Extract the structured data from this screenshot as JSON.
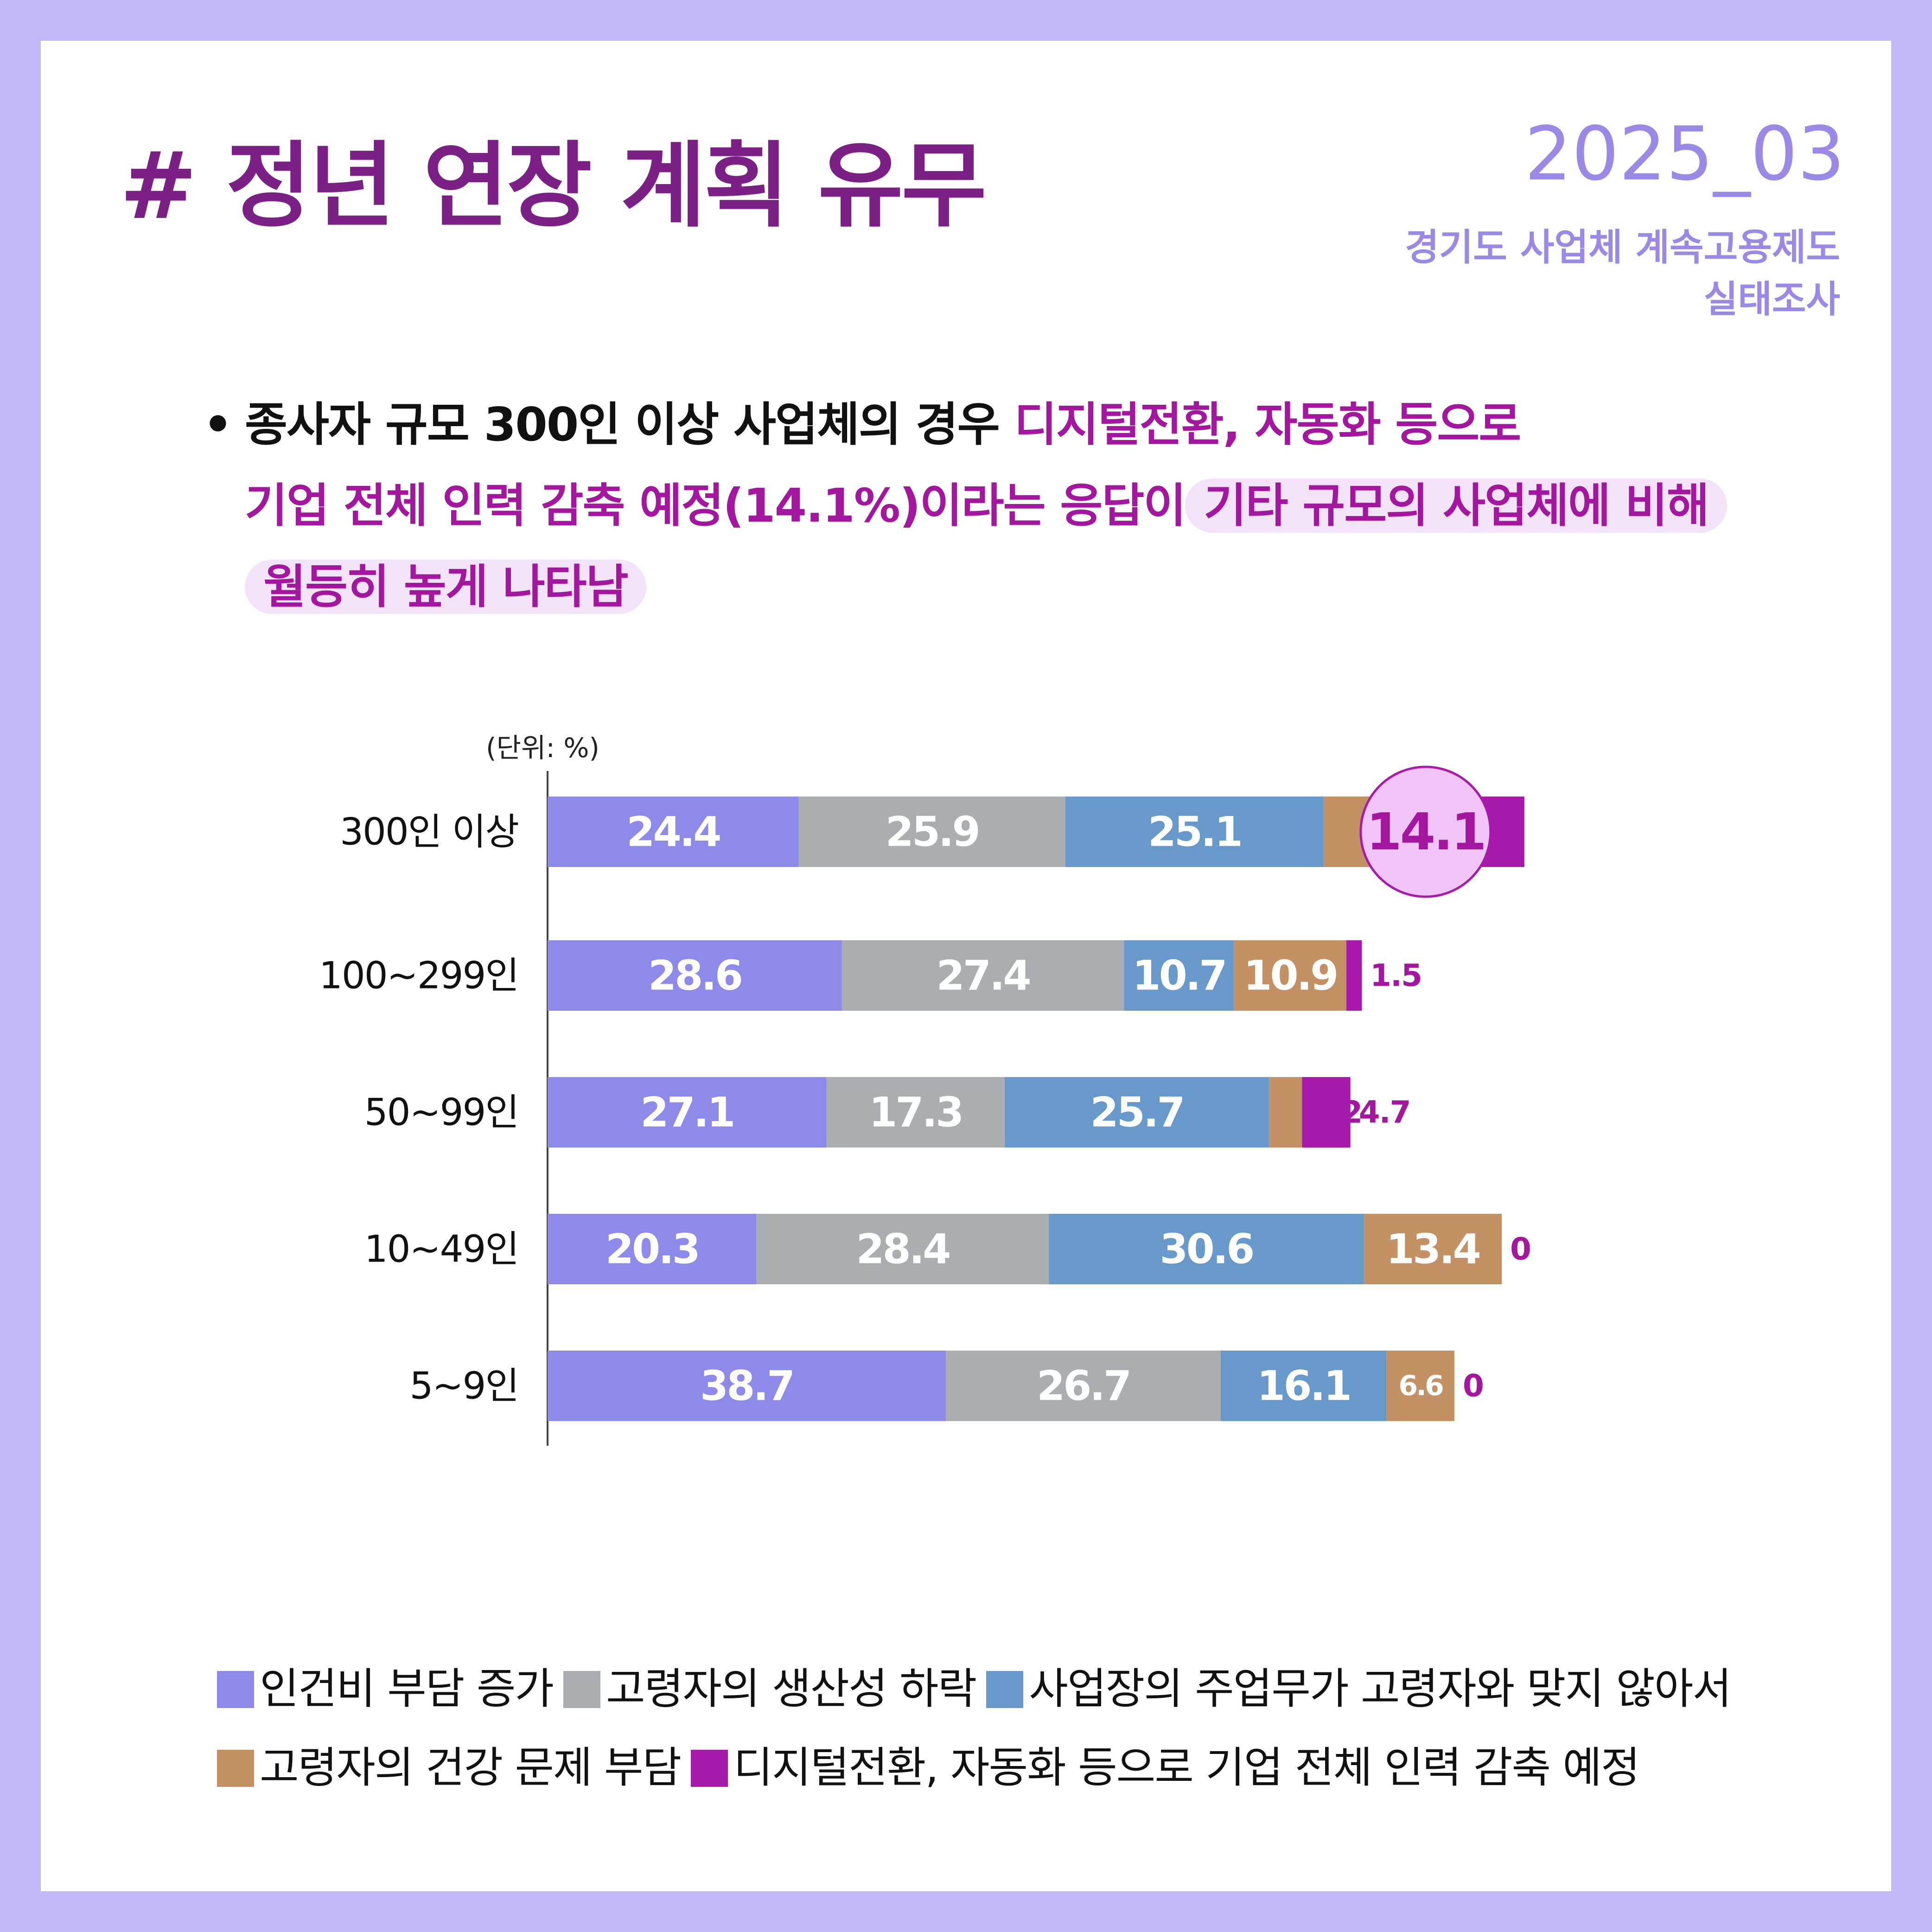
{
  "header": {
    "title": "# 정년 연장 계획 유무",
    "issue_date": "2025_03",
    "source_line1": "경기도 사업체 계속고용제도",
    "source_line2": "실태조사"
  },
  "summary": {
    "bullet": "•",
    "part1": "종사자 규모 300인 이상 사업체의 경우 ",
    "part2": "디지털전환, 자동화 등으로",
    "part3": "기업 전체 인력 감축 예정(14.1%)이라는 응답이",
    "part4": "기타 규모의 사업체에 비해",
    "part5": "월등히 높게 나타남"
  },
  "chart_data": {
    "type": "bar",
    "orientation": "horizontal",
    "stacked": true,
    "unit_label": "(단위: %)",
    "categories": [
      "300인 이상",
      "100~299인",
      "50~99인",
      "10~49인",
      "5~9인"
    ],
    "series": [
      {
        "name": "인건비 부담 증가",
        "color": "#8e8aea",
        "values": [
          24.4,
          28.6,
          27.1,
          20.3,
          38.7
        ]
      },
      {
        "name": "고령자의 생산성 하락",
        "color": "#abaeb1",
        "values": [
          25.9,
          27.4,
          17.3,
          28.4,
          26.7
        ]
      },
      {
        "name": "사업장의 주업무가 고령자와 맞지 않아서",
        "color": "#6899cb",
        "values": [
          25.1,
          10.7,
          25.7,
          30.6,
          16.1
        ]
      },
      {
        "name": "고령자의 건강 문제 부담",
        "color": "#c39164",
        "values": [
          5.4,
          10.9,
          3.2,
          13.4,
          6.6
        ]
      },
      {
        "name": "디지털전환, 자동화 등으로 기업 전체 인력 감축 예정",
        "color": "#a81aa9",
        "values": [
          14.1,
          1.5,
          4.7,
          0,
          0
        ]
      }
    ],
    "highlight": {
      "category_index": 0,
      "series_index": 4,
      "value": 14.1
    },
    "legend_position": "bottom",
    "grid": false
  }
}
